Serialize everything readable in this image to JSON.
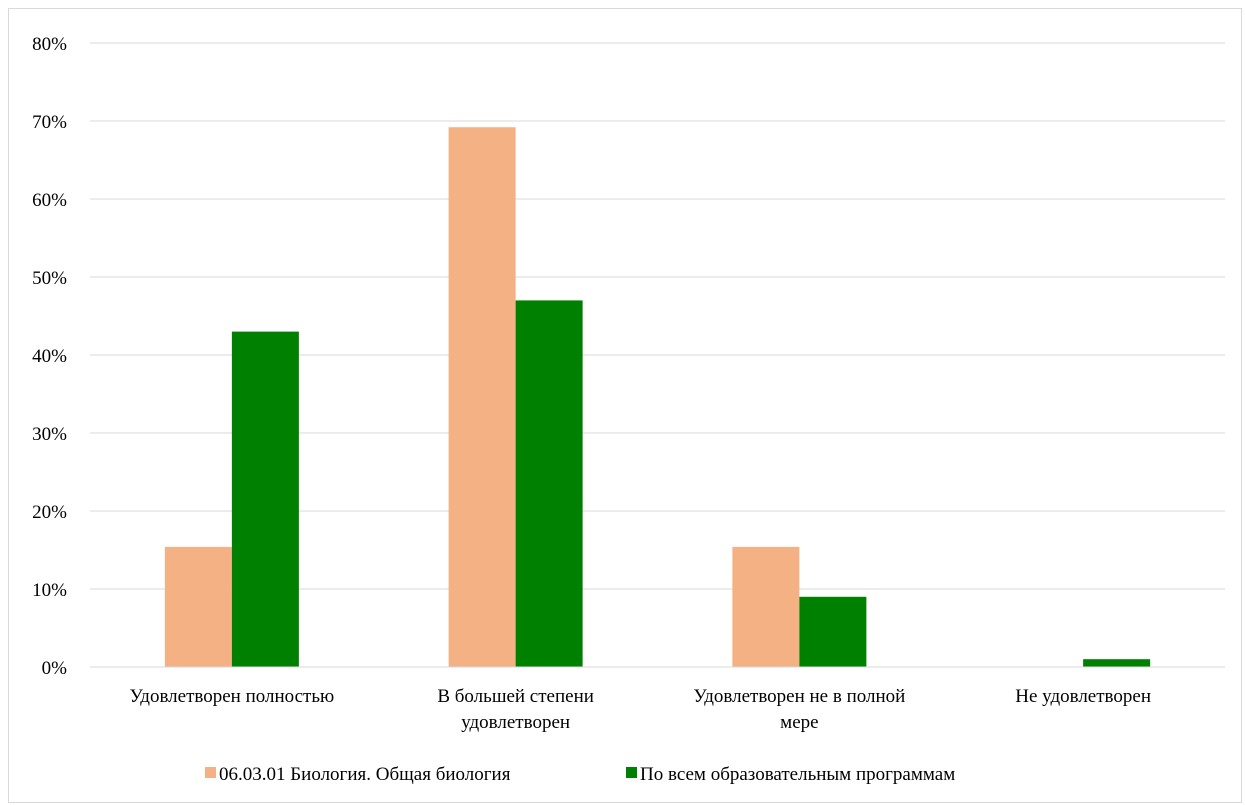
{
  "chart_data": {
    "type": "bar",
    "title": "",
    "xlabel": "",
    "ylabel": "",
    "ylim": [
      0,
      80
    ],
    "yticks": [
      "0%",
      "10%",
      "20%",
      "30%",
      "40%",
      "50%",
      "60%",
      "70%",
      "80%"
    ],
    "categories": [
      [
        "Удовлетворен полностью"
      ],
      [
        "В большей степени",
        "удовлетворен"
      ],
      [
        "Удовлетворен не в полной",
        "мере"
      ],
      [
        "Не удовлетворен"
      ]
    ],
    "series": [
      {
        "name": "06.03.01 Биология. Общая биология",
        "color": "#f4b183",
        "values": [
          15.4,
          69.2,
          15.4,
          0
        ]
      },
      {
        "name": "По всем образовательным программам",
        "color": "#008000",
        "values": [
          43,
          47,
          9,
          1
        ]
      }
    ],
    "grid": true,
    "legend_position": "bottom"
  }
}
